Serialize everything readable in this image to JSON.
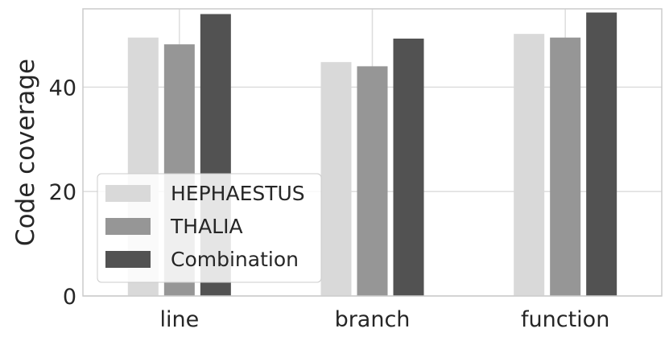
{
  "chart_data": {
    "type": "bar",
    "title": "",
    "xlabel": "",
    "ylabel": "Code coverage",
    "categories": [
      "line",
      "branch",
      "function"
    ],
    "series": [
      {
        "name": "HEPHAESTUS",
        "values": [
          49.5,
          44.8,
          50.2
        ],
        "color": "#d9d9d9"
      },
      {
        "name": "THALIA",
        "values": [
          48.2,
          44.0,
          49.5
        ],
        "color": "#969696"
      },
      {
        "name": "Combination",
        "values": [
          54.0,
          49.3,
          54.3
        ],
        "color": "#525252"
      }
    ],
    "ylim": [
      0,
      55
    ],
    "yticks": [
      0,
      20,
      40
    ],
    "grid": true,
    "legend_position": "lower-left"
  }
}
